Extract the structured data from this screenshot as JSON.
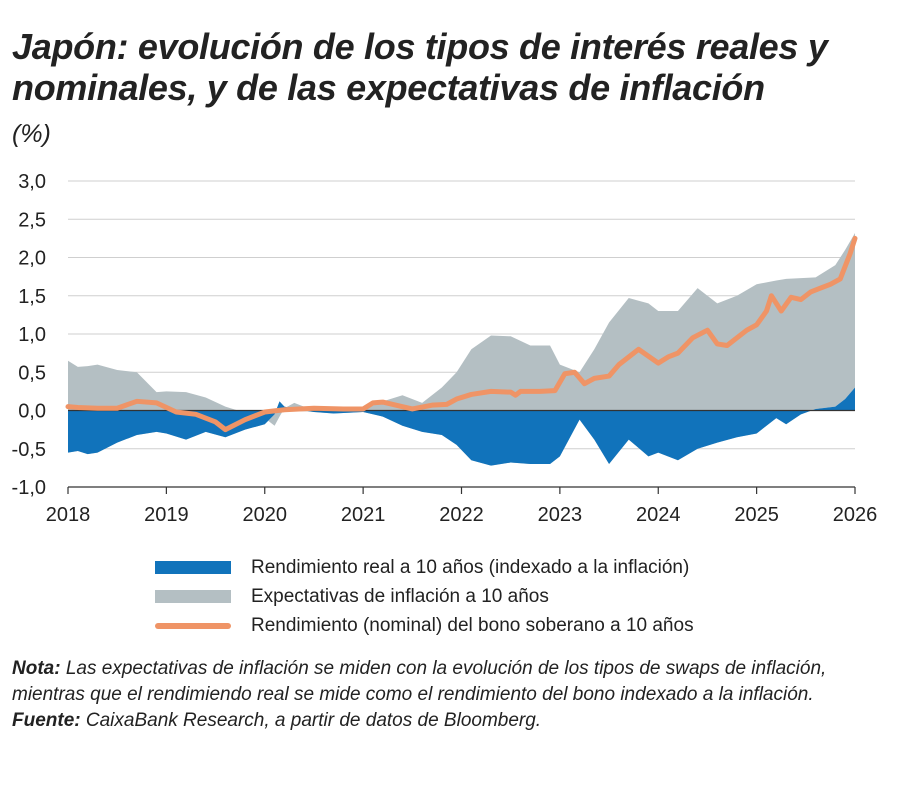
{
  "header": {
    "title": "Japón: evolución de los tipos de interés reales y nominales, y de las expectativas de inflación",
    "unit": "(%)"
  },
  "colors": {
    "real": "#1173bb",
    "expectations": "#b4bfc3",
    "nominal": "#ef9466",
    "grid": "#cfcfcf",
    "axis": "#333333"
  },
  "chart_data": {
    "type": "area",
    "x_unit": "year",
    "xlim": [
      2018,
      2026
    ],
    "ylim": [
      -1.0,
      3.0
    ],
    "y_ticks": [
      3.0,
      2.5,
      2.0,
      1.5,
      1.0,
      0.5,
      0.0,
      -0.5,
      -1.0
    ],
    "y_tick_labels": [
      "3,0",
      "2,5",
      "2,0",
      "1,5",
      "1,0",
      "0,5",
      "0,0",
      "-0,5",
      "-1,0"
    ],
    "x_ticks": [
      2018,
      2019,
      2020,
      2021,
      2022,
      2023,
      2024,
      2025,
      2026
    ],
    "x_tick_labels": [
      "2018",
      "2019",
      "2020",
      "2021",
      "2022",
      "2023",
      "2024",
      "2025",
      "2026"
    ],
    "grid": "horizontal",
    "stacking": "expectativas apiladas sobre el rendimiento real",
    "series": [
      {
        "name": "Rendimiento real a 10 años (indexado a la inflación)",
        "kind": "area",
        "color_key": "real",
        "x": [
          2018.0,
          2018.1,
          2018.2,
          2018.3,
          2018.5,
          2018.7,
          2018.9,
          2019.0,
          2019.2,
          2019.4,
          2019.6,
          2019.8,
          2020.0,
          2020.1,
          2020.15,
          2020.2,
          2020.3,
          2020.5,
          2020.7,
          2021.0,
          2021.2,
          2021.4,
          2021.6,
          2021.8,
          2021.95,
          2022.1,
          2022.3,
          2022.5,
          2022.7,
          2022.9,
          2023.0,
          2023.2,
          2023.35,
          2023.5,
          2023.7,
          2023.9,
          2024.0,
          2024.2,
          2024.4,
          2024.6,
          2024.8,
          2025.0,
          2025.2,
          2025.3,
          2025.45,
          2025.6,
          2025.8,
          2025.9,
          2026.0
        ],
        "y": [
          -0.55,
          -0.53,
          -0.57,
          -0.55,
          -0.42,
          -0.32,
          -0.28,
          -0.3,
          -0.38,
          -0.28,
          -0.35,
          -0.25,
          -0.18,
          -0.05,
          0.12,
          0.05,
          0.02,
          -0.02,
          -0.04,
          -0.02,
          -0.08,
          -0.2,
          -0.28,
          -0.32,
          -0.45,
          -0.65,
          -0.72,
          -0.68,
          -0.7,
          -0.7,
          -0.6,
          -0.12,
          -0.38,
          -0.7,
          -0.38,
          -0.6,
          -0.55,
          -0.65,
          -0.5,
          -0.42,
          -0.35,
          -0.3,
          -0.1,
          -0.18,
          -0.05,
          0.02,
          0.05,
          0.15,
          0.3
        ]
      },
      {
        "name": "Expectativas de inflación a 10 años",
        "kind": "area",
        "color_key": "expectations",
        "x": [
          2018.0,
          2018.1,
          2018.2,
          2018.3,
          2018.5,
          2018.7,
          2018.9,
          2019.0,
          2019.2,
          2019.4,
          2019.6,
          2019.8,
          2020.0,
          2020.1,
          2020.15,
          2020.2,
          2020.3,
          2020.5,
          2020.7,
          2021.0,
          2021.2,
          2021.4,
          2021.6,
          2021.8,
          2021.95,
          2022.1,
          2022.3,
          2022.5,
          2022.7,
          2022.9,
          2023.0,
          2023.2,
          2023.35,
          2023.5,
          2023.7,
          2023.9,
          2024.0,
          2024.2,
          2024.4,
          2024.6,
          2024.8,
          2025.0,
          2025.2,
          2025.3,
          2025.45,
          2025.6,
          2025.8,
          2025.9,
          2026.0
        ],
        "y": [
          1.2,
          1.1,
          1.15,
          1.15,
          0.95,
          0.82,
          0.52,
          0.55,
          0.62,
          0.45,
          0.4,
          0.22,
          0.08,
          -0.15,
          -0.2,
          -0.02,
          0.08,
          0.02,
          0.02,
          0.03,
          0.2,
          0.4,
          0.38,
          0.62,
          0.95,
          1.45,
          1.7,
          1.65,
          1.55,
          1.55,
          1.2,
          0.62,
          1.18,
          1.85,
          1.85,
          2.0,
          1.85,
          1.95,
          2.1,
          1.82,
          1.85,
          1.95,
          1.8,
          1.9,
          1.78,
          1.72,
          1.85,
          1.95,
          2.02
        ]
      },
      {
        "name": "Rendimiento (nominal) del bono soberano a 10 años",
        "kind": "line",
        "color_key": "nominal",
        "x": [
          2018.0,
          2018.1,
          2018.3,
          2018.5,
          2018.7,
          2018.9,
          2019.1,
          2019.3,
          2019.5,
          2019.6,
          2019.8,
          2020.0,
          2020.2,
          2020.5,
          2020.8,
          2021.0,
          2021.1,
          2021.2,
          2021.4,
          2021.5,
          2021.7,
          2021.85,
          2021.95,
          2022.1,
          2022.3,
          2022.5,
          2022.55,
          2022.6,
          2022.8,
          2022.95,
          2023.05,
          2023.15,
          2023.25,
          2023.35,
          2023.5,
          2023.6,
          2023.8,
          2024.0,
          2024.1,
          2024.2,
          2024.35,
          2024.5,
          2024.6,
          2024.7,
          2024.8,
          2024.9,
          2025.0,
          2025.1,
          2025.15,
          2025.25,
          2025.35,
          2025.45,
          2025.55,
          2025.65,
          2025.75,
          2025.85,
          2025.95,
          2026.0
        ],
        "y": [
          0.05,
          0.04,
          0.03,
          0.03,
          0.12,
          0.1,
          -0.02,
          -0.05,
          -0.15,
          -0.25,
          -0.12,
          -0.02,
          0.01,
          0.03,
          0.02,
          0.02,
          0.1,
          0.11,
          0.05,
          0.02,
          0.07,
          0.08,
          0.15,
          0.21,
          0.25,
          0.24,
          0.2,
          0.25,
          0.25,
          0.26,
          0.48,
          0.5,
          0.35,
          0.42,
          0.45,
          0.6,
          0.8,
          0.62,
          0.7,
          0.75,
          0.95,
          1.05,
          0.87,
          0.85,
          0.95,
          1.05,
          1.12,
          1.3,
          1.5,
          1.3,
          1.48,
          1.45,
          1.55,
          1.6,
          1.65,
          1.72,
          2.05,
          2.25
        ]
      }
    ]
  },
  "legend": {
    "items": [
      {
        "label": "Rendimiento real a 10 años (indexado a la inflación)",
        "swatch": "area",
        "color_key": "real"
      },
      {
        "label": "Expectativas de inflación a 10 años",
        "swatch": "area",
        "color_key": "expectations"
      },
      {
        "label": "Rendimiento (nominal) del bono soberano a 10 años",
        "swatch": "line",
        "color_key": "nominal"
      }
    ]
  },
  "notes": {
    "nota_label": "Nota:",
    "nota_text": " Las expectativas de inflación se miden con la evolución de los tipos de swaps de inflación, mientras que el rendimiendo real se mide como el rendimiento del bono indexado a la inflación.",
    "fuente_label": "Fuente:",
    "fuente_text": " CaixaBank Research, a partir de datos de Bloomberg."
  }
}
